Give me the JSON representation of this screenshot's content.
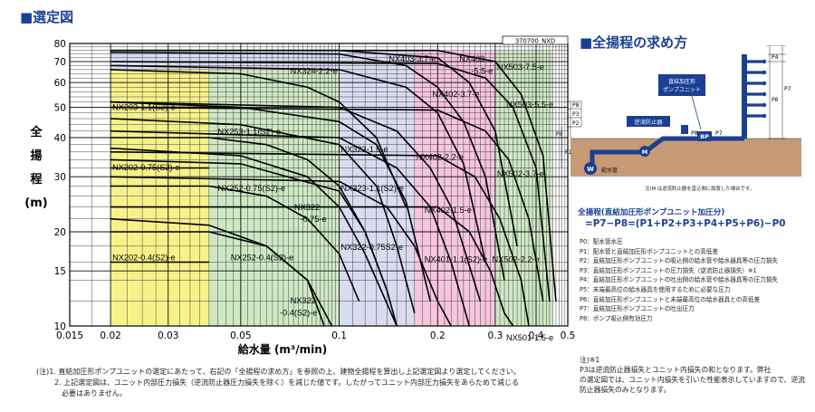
{
  "left_title": "■選定図",
  "right_title": "■全揚程の求め方",
  "chart_data": {
    "type": "line",
    "code": "370700_NXD",
    "xlabel": "給水量 (m³/min)",
    "ylabel_chars": [
      "全",
      "揚",
      "程",
      "(m)"
    ],
    "xscale": "log",
    "yscale": "log",
    "xlim": [
      0.015,
      0.5
    ],
    "ylim": [
      10,
      80
    ],
    "xticks": [
      0.015,
      0.02,
      0.03,
      0.05,
      0.1,
      0.2,
      0.3,
      0.4,
      0.5
    ],
    "xtick_labels": [
      "0.015",
      "0.02",
      "0.03",
      "0.05",
      "0.1",
      "0.2",
      "0.3",
      "0.4",
      "0.5"
    ],
    "yticks": [
      10,
      15,
      20,
      30,
      40,
      50,
      60,
      70,
      80
    ],
    "ytick_labels": [
      "10",
      "15",
      "20",
      "30",
      "40",
      "50",
      "60",
      "70",
      "80"
    ],
    "regions": [
      {
        "color": "#f7f18a",
        "x": [
          0.02,
          0.04
        ],
        "y": [
          10,
          66
        ]
      },
      {
        "color": "#cfe8c4",
        "x": [
          0.04,
          0.1
        ],
        "y": [
          10,
          66
        ]
      },
      {
        "color": "#d9dbf0",
        "x": [
          0.02,
          0.1
        ],
        "y": [
          66,
          76
        ]
      },
      {
        "color": "#d9dbf0",
        "x": [
          0.1,
          0.17
        ],
        "y": [
          10,
          76
        ]
      },
      {
        "color": "#f6c6dc",
        "x": [
          0.17,
          0.3
        ],
        "y": [
          10,
          76
        ]
      },
      {
        "color": "#cfe8c4",
        "x": [
          0.3,
          0.45
        ],
        "y": [
          10,
          76
        ]
      }
    ],
    "series": [
      {
        "name": "NX324-2.2-e",
        "x": [
          0.02,
          0.05,
          0.08,
          0.1,
          0.13,
          0.16
        ],
        "y": [
          66,
          64,
          58,
          52,
          40,
          24
        ]
      },
      {
        "name": "NX253-1.1(S2)-e",
        "x": [
          0.02,
          0.04,
          0.06,
          0.08,
          0.1,
          0.12,
          0.14
        ],
        "y": [
          40,
          40,
          38,
          34,
          28,
          20,
          13
        ]
      },
      {
        "name": "NX252-0.75(S2)-e",
        "x": [
          0.02,
          0.04,
          0.06,
          0.08,
          0.1,
          0.115
        ],
        "y": [
          28,
          28,
          26,
          22,
          17,
          12
        ]
      },
      {
        "name": "NX322-0.75-e",
        "x": [
          0.02,
          0.05,
          0.08,
          0.1,
          0.12,
          0.15
        ],
        "y": [
          37,
          35,
          30,
          24,
          17,
          10
        ]
      },
      {
        "name": "NX252-0.4(S2)-e",
        "x": [
          0.02,
          0.04,
          0.06,
          0.08,
          0.095
        ],
        "y": [
          20,
          20,
          18,
          14,
          10
        ]
      },
      {
        "name": "NX322-0.4(S2)-e",
        "x": [
          0.02,
          0.04,
          0.06,
          0.08,
          0.09
        ],
        "y": [
          22,
          21,
          18,
          14,
          10
        ]
      },
      {
        "name": "NX323-1.5-e",
        "x": [
          0.02,
          0.05,
          0.1,
          0.13,
          0.16,
          0.19
        ],
        "y": [
          52,
          50,
          45,
          38,
          25,
          12
        ]
      },
      {
        "name": "NX323-1.1(S2)-e",
        "x": [
          0.02,
          0.05,
          0.1,
          0.13,
          0.15,
          0.17
        ],
        "y": [
          46,
          44,
          38,
          28,
          18,
          11
        ]
      },
      {
        "name": "NX322-0.75S2-e",
        "x": [
          0.02,
          0.05,
          0.1,
          0.12,
          0.14,
          0.15
        ],
        "y": [
          34,
          33,
          27,
          20,
          13,
          10
        ]
      },
      {
        "name": "NX403-3.7-e",
        "x": [
          0.02,
          0.1,
          0.16,
          0.2,
          0.24,
          0.28,
          0.32
        ],
        "y": [
          75,
          74,
          68,
          58,
          45,
          30,
          14
        ]
      },
      {
        "name": "NX403-5.5-e",
        "x": [
          0.02,
          0.1,
          0.2,
          0.25,
          0.3,
          0.35
        ],
        "y": [
          76,
          76,
          72,
          60,
          42,
          18
        ]
      },
      {
        "name": "NX402-3.7-e",
        "x": [
          0.02,
          0.1,
          0.16,
          0.2,
          0.24,
          0.28
        ],
        "y": [
          68,
          66,
          58,
          48,
          33,
          16
        ]
      },
      {
        "name": "NX402-2.2-e",
        "x": [
          0.02,
          0.1,
          0.15,
          0.19,
          0.22,
          0.27
        ],
        "y": [
          52,
          50,
          42,
          32,
          24,
          12
        ]
      },
      {
        "name": "NX402-1.5-e",
        "x": [
          0.02,
          0.1,
          0.15,
          0.19,
          0.22,
          0.25
        ],
        "y": [
          42,
          40,
          32,
          24,
          16,
          10
        ]
      },
      {
        "name": "NX401-1.1(S2)-e",
        "x": [
          0.02,
          0.1,
          0.14,
          0.17,
          0.2,
          0.22
        ],
        "y": [
          30,
          29,
          24,
          18,
          12,
          10
        ]
      },
      {
        "name": "NX503-7.5-e",
        "x": [
          0.02,
          0.2,
          0.3,
          0.36,
          0.42,
          0.46
        ],
        "y": [
          76,
          76,
          70,
          55,
          35,
          12
        ]
      },
      {
        "name": "NX503-5.5-e",
        "x": [
          0.02,
          0.2,
          0.28,
          0.34,
          0.4,
          0.44
        ],
        "y": [
          70,
          69,
          62,
          50,
          32,
          12
        ]
      },
      {
        "name": "NX502-3.7-e",
        "x": [
          0.02,
          0.2,
          0.28,
          0.33,
          0.38,
          0.42
        ],
        "y": [
          50,
          49,
          42,
          34,
          22,
          12
        ]
      },
      {
        "name": "NX502-2.2-e",
        "x": [
          0.02,
          0.2,
          0.26,
          0.31,
          0.36,
          0.38
        ],
        "y": [
          36,
          35,
          30,
          22,
          14,
          10
        ]
      },
      {
        "name": "NX501-1.5-e",
        "x": [
          0.02,
          0.2,
          0.25,
          0.29,
          0.32,
          0.34
        ],
        "y": [
          24,
          24,
          20,
          15,
          11,
          10
        ]
      },
      {
        "name": "NX203-1.1(S2)-e",
        "x": [
          0.02,
          0.04
        ],
        "y": [
          50,
          50
        ]
      },
      {
        "name": "NX202-0.75(S2)-e",
        "x": [
          0.02,
          0.04
        ],
        "y": [
          32,
          32
        ]
      },
      {
        "name": "NX202-0.4(S2)-e",
        "x": [
          0.02,
          0.04
        ],
        "y": [
          16,
          16
        ]
      }
    ],
    "labels": [
      {
        "text": "NX324-2.2-e",
        "x": 0.07,
        "y": 64
      },
      {
        "text": "NX403-3.7-e",
        "x": 0.14,
        "y": 70
      },
      {
        "text": "NX403",
        "x": 0.23,
        "y": 70
      },
      {
        "text": "-5.5-e",
        "x": 0.25,
        "y": 64
      },
      {
        "text": "NX503-7.5-e",
        "x": 0.3,
        "y": 66
      },
      {
        "text": "NX402-3.7-e",
        "x": 0.19,
        "y": 54
      },
      {
        "text": "NX503-5.5-e",
        "x": 0.32,
        "y": 50
      },
      {
        "text": "NX203-1.1(S2)-e",
        "x": 0.02,
        "y": 49
      },
      {
        "text": "NX253-1.1(S2)-e",
        "x": 0.042,
        "y": 41
      },
      {
        "text": "NX323-1.5-e",
        "x": 0.1,
        "y": 36
      },
      {
        "text": "NX402-2.2-e",
        "x": 0.17,
        "y": 34
      },
      {
        "text": "NX202-0.75(S2)-e",
        "x": 0.02,
        "y": 31.5
      },
      {
        "text": "NX502-3.7-e",
        "x": 0.3,
        "y": 30
      },
      {
        "text": "NX252-0.75(S2)-e",
        "x": 0.042,
        "y": 27
      },
      {
        "text": "NX323-1.1(S2)-e",
        "x": 0.1,
        "y": 27
      },
      {
        "text": "NX322",
        "x": 0.072,
        "y": 23.5
      },
      {
        "text": "-0.75-e",
        "x": 0.075,
        "y": 21.5
      },
      {
        "text": "NX402-1.5-e",
        "x": 0.18,
        "y": 23
      },
      {
        "text": "NX202-0.4(S2)-e",
        "x": 0.02,
        "y": 16.2
      },
      {
        "text": "NX252-0.4(S2)-e",
        "x": 0.046,
        "y": 16.2
      },
      {
        "text": "NX322-0.75S2-e",
        "x": 0.1,
        "y": 17.5
      },
      {
        "text": "NX401-1.1(S2)-e",
        "x": 0.18,
        "y": 16
      },
      {
        "text": "NX502-2.2-e",
        "x": 0.29,
        "y": 16
      },
      {
        "text": "NX322",
        "x": 0.07,
        "y": 11.8
      },
      {
        "text": "-0.4(S2)-e",
        "x": 0.065,
        "y": 10.8
      },
      {
        "text": "NX501-1.5-e",
        "x": 0.32,
        "y": 9
      }
    ]
  },
  "notes": [
    "(注)1. 直結加圧形ポンプユニットの選定にあたって、右記の「全揚程の求め方」を参照の上、建物全揚程を算出し上記選定図より選定してください。",
    "2. 上記選定図は、ユニット内部圧力損失（逆流防止器圧力損失を除く）を減じた値です。したがってユニット内部圧力損失をあらためて減じる",
    "必要はありません。"
  ],
  "diagram": {
    "labels": [
      "P5",
      "P4",
      "P7",
      "P6",
      "P8",
      "P3",
      "P2",
      "P0",
      "P1",
      "BP",
      "M",
      "W",
      "P8",
      "P7"
    ],
    "pump_label": "直結加圧形 ポンプユニット",
    "preventer_label": "逆流防止器",
    "meter_label": "配水管",
    "caption": "注)M は逆流防止器を直込側に設置した場合です。"
  },
  "formula_title": "全揚程(直結加圧形ポンプユニット加圧分)",
  "formula": "=P7−P8=(P1+P2+P3+P4+P5+P6)−P0",
  "legend": [
    "P0：配水管水圧",
    "P1：配水管と直結加圧形ポンプユニットとの高低差",
    "P2：直結加圧形ポンプユニットの吸込側の給水管や給水器具等の圧力損失",
    "P3：直結加圧形ポンプユニットの圧力損失（逆流防止器損失）※1",
    "P4：直結加圧形ポンプユニットの吐出側の給水管や給水器具等の圧力損失",
    "P5：末端最高位の給水器具を使用するために必要な圧力",
    "P6：直結加圧形ポンプユニットと末端最高位の給水器具との高低差",
    "P7：直結加圧形ポンプユニットの吐出圧力",
    "P8：ポンプ吸込側有効圧力"
  ],
  "footnote": [
    "注)※1",
    "P3は逆流防止器損失とユニット内損失の和となります。弊社",
    "の選定図では、ユニット内損失を引いた性能表示していますので、逆流防止器損失のみとなります。"
  ],
  "colors": {
    "accent": "#1a3f93",
    "curve": "#000000",
    "grid": "#555555"
  }
}
